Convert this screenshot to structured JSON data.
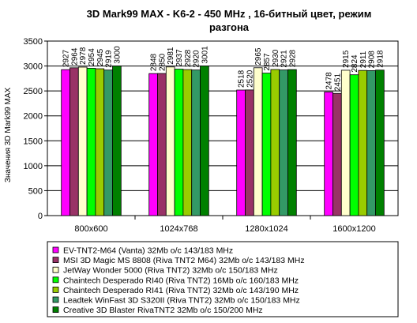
{
  "chart_data": {
    "type": "bar",
    "title": "3D Mark99 MAX - K6-2 - 450 MHz ,  16-битный цвет, режим разгона",
    "title_lines": [
      "3D Mark99 MAX - K6-2 - 450 MHz ,  16-битный цвет, режим",
      "разгона"
    ],
    "xlabel": "",
    "ylabel": "Значения 3D Mark99 MAX",
    "ylim": [
      0,
      3500
    ],
    "yticks": [
      0,
      500,
      1000,
      1500,
      2000,
      2500,
      3000,
      3500
    ],
    "grid": true,
    "legend_position": "bottom",
    "categories": [
      "800x600",
      "1024x768",
      "1280x1024",
      "1600x1200"
    ],
    "series": [
      {
        "name": "EV-TNT2-M64 (Vanta) 32Mb o/c 143/183 MHz",
        "color": "#ff00ff",
        "values": [
          2927,
          2848,
          2518,
          2478
        ]
      },
      {
        "name": "MSI 3D Magic MS 8808 (Riva TNT2 M64) 32Mb o/c 143/183 MHz",
        "color": "#993366",
        "values": [
          2964,
          2850,
          2520,
          2451
        ]
      },
      {
        "name": "JetWay Wonder 5000 (Riva TNT2) 32Mb o/c 150/183 MHz",
        "color": "#ffffcc",
        "values": [
          2978,
          2981,
          2965,
          2915
        ]
      },
      {
        "name": "Chaintech Desperado RI40 (Riva TNT2) 16Mb o/c 160/183 MHz",
        "color": "#00ff00",
        "values": [
          2954,
          2937,
          2857,
          2824
        ]
      },
      {
        "name": "Chaintech Desperado RI41 (Riva TNT2) 32Mb o/c 143/190 MHz",
        "color": "#99cc00",
        "values": [
          2945,
          2928,
          2930,
          2911
        ]
      },
      {
        "name": "Leadtek WinFast 3D S320II (Riva TNT2) 32Mb o/c 150/183 MHz",
        "color": "#339966",
        "values": [
          2919,
          2920,
          2921,
          2908
        ]
      },
      {
        "name": "Creative 3D Blaster RivaTNT2 32Mb o/c 150/200 MHz",
        "color": "#008000",
        "values": [
          3000,
          3001,
          2928,
          2918
        ]
      }
    ]
  }
}
